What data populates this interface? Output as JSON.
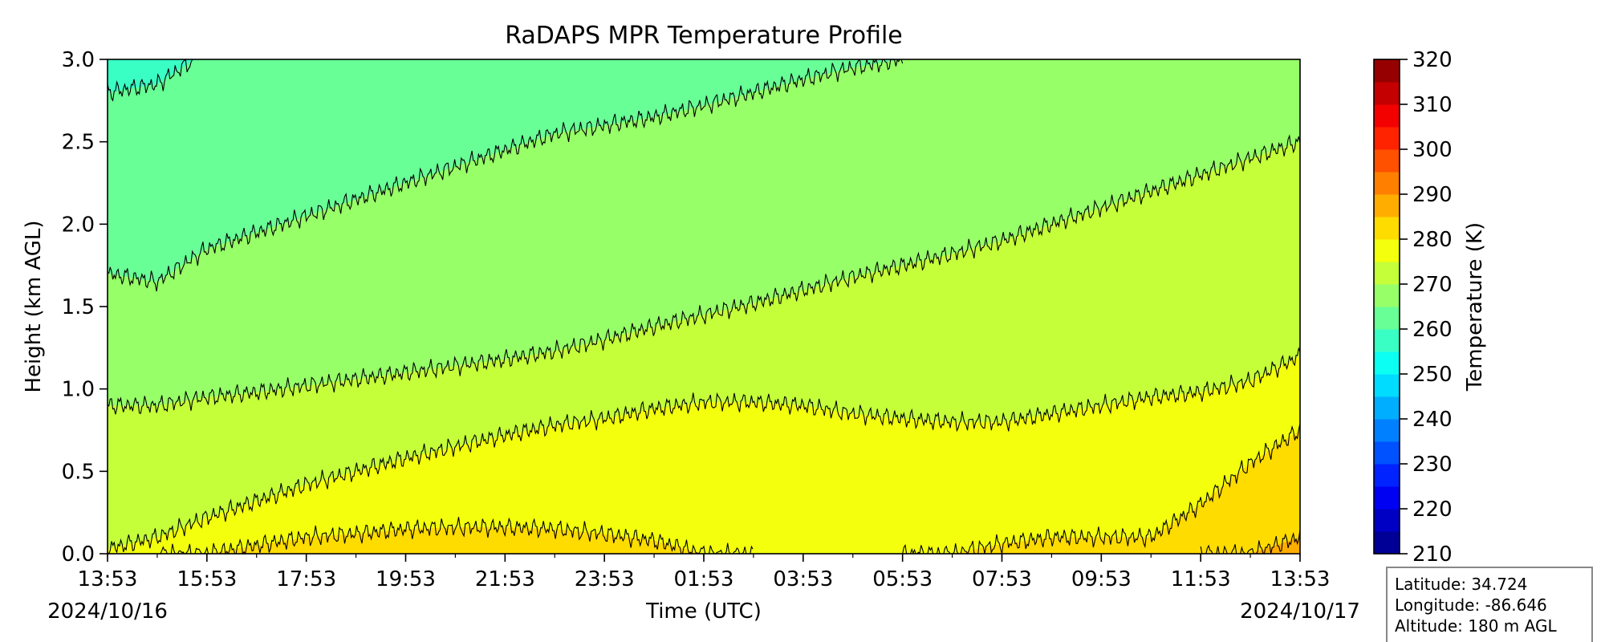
{
  "chart_data": {
    "type": "heatmap",
    "title": "RaDAPS MPR Temperature Profile",
    "xlabel": "Time (UTC)",
    "ylabel": "Height (km AGL)",
    "x_ticks": [
      "13:53",
      "15:53",
      "17:53",
      "19:53",
      "21:53",
      "23:53",
      "01:53",
      "03:53",
      "05:53",
      "07:53",
      "09:53",
      "11:53",
      "13:53"
    ],
    "x_start_date": "2024/10/16",
    "x_end_date": "2024/10/17",
    "xlim_hours": [
      0,
      24
    ],
    "ylim": [
      0.0,
      3.0
    ],
    "y_ticks": [
      "0.0",
      "0.5",
      "1.0",
      "1.5",
      "2.0",
      "2.5",
      "3.0"
    ],
    "colorbar": {
      "label": "Temperature (K)",
      "range": [
        210,
        320
      ],
      "step": 5,
      "ticks": [
        "210",
        "220",
        "230",
        "240",
        "250",
        "260",
        "270",
        "280",
        "290",
        "300",
        "310",
        "320"
      ],
      "colormap": "jet"
    },
    "contour_levels_K": [
      260,
      265,
      270,
      275,
      280,
      285
    ],
    "isotherm_heights_km": {
      "hours": [
        0,
        1,
        2,
        3,
        4,
        5,
        6,
        7,
        8,
        9,
        10,
        11,
        12,
        13,
        14,
        15,
        16,
        17,
        18,
        19,
        20,
        21,
        22,
        23,
        24
      ],
      "K260": [
        2.8,
        2.85,
        3.05,
        null,
        null,
        null,
        null,
        null,
        null,
        null,
        null,
        null,
        null,
        null,
        null,
        null,
        null,
        null,
        null,
        null,
        null,
        null,
        null,
        null,
        null
      ],
      "K265": [
        1.7,
        1.65,
        1.85,
        1.95,
        2.05,
        2.15,
        2.25,
        2.35,
        2.45,
        2.55,
        2.6,
        2.65,
        2.72,
        2.8,
        2.88,
        2.95,
        3.0,
        3.05,
        null,
        null,
        null,
        null,
        null,
        null,
        null
      ],
      "K270": [
        0.9,
        0.9,
        0.95,
        0.98,
        1.02,
        1.06,
        1.1,
        1.14,
        1.18,
        1.23,
        1.3,
        1.38,
        1.45,
        1.52,
        1.6,
        1.68,
        1.75,
        1.82,
        1.9,
        2.0,
        2.1,
        2.2,
        2.3,
        2.4,
        2.5
      ],
      "K275": [
        0.03,
        0.1,
        0.22,
        0.32,
        0.42,
        0.5,
        0.58,
        0.65,
        0.72,
        0.78,
        0.82,
        0.88,
        0.92,
        0.92,
        0.9,
        0.85,
        0.82,
        0.8,
        0.8,
        0.85,
        0.9,
        0.95,
        0.98,
        1.05,
        1.2
      ],
      "K280": [
        null,
        null,
        0.0,
        0.05,
        0.1,
        0.12,
        0.15,
        0.16,
        0.16,
        0.15,
        0.12,
        0.08,
        0.0,
        null,
        null,
        null,
        null,
        0.0,
        0.06,
        0.1,
        0.1,
        0.1,
        0.3,
        0.55,
        0.75
      ],
      "K285": [
        null,
        null,
        null,
        null,
        null,
        null,
        null,
        null,
        null,
        null,
        null,
        null,
        null,
        null,
        null,
        null,
        null,
        null,
        null,
        null,
        null,
        null,
        null,
        0.0,
        0.1
      ]
    },
    "info_box": {
      "latitude": "Latitude: 34.724",
      "longitude": "Longitude: -86.646",
      "altitude": "Altitude: 180 m AGL"
    },
    "grid": false
  }
}
